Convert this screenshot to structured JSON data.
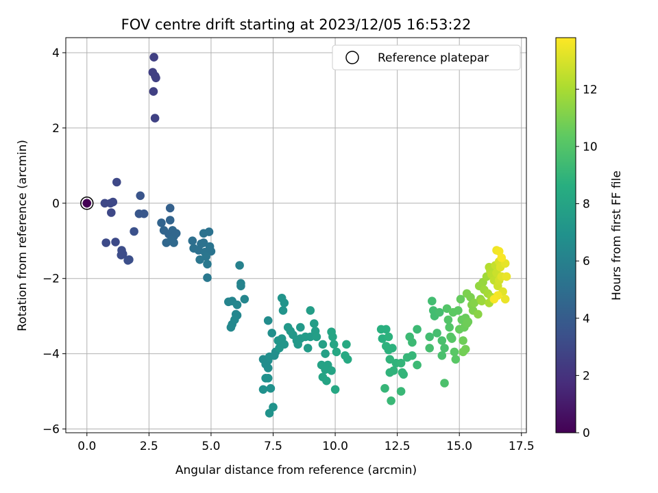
{
  "chart_data": {
    "type": "scatter",
    "title": "FOV centre drift starting at 2023/12/05 16:53:22",
    "xlabel": "Angular distance from reference (arcmin)",
    "ylabel": "Rotation from reference (arcmin)",
    "xlim": [
      -0.85,
      17.7
    ],
    "ylim": [
      -6.1,
      4.4
    ],
    "xticks": [
      0.0,
      2.5,
      5.0,
      7.5,
      10.0,
      12.5,
      15.0,
      17.5
    ],
    "xtick_labels": [
      "0.0",
      "2.5",
      "5.0",
      "7.5",
      "10.0",
      "12.5",
      "15.0",
      "17.5"
    ],
    "yticks": [
      -6,
      -4,
      -2,
      0,
      2,
      4
    ],
    "ytick_labels": [
      "−6",
      "−4",
      "−2",
      "0",
      "2",
      "4"
    ],
    "grid": true,
    "legend": {
      "placement": "top-right",
      "entries": [
        "Reference platepar"
      ]
    },
    "colorbar": {
      "label": "Hours from first FF file",
      "colormap": "viridis",
      "range": [
        0,
        13.8
      ],
      "ticks": [
        0,
        2,
        4,
        6,
        8,
        10,
        12
      ],
      "tick_labels": [
        "0",
        "2",
        "4",
        "6",
        "8",
        "10",
        "12"
      ]
    },
    "reference_point": {
      "x": 0.0,
      "y": 0.0,
      "marker": "open-circle"
    },
    "series": [
      {
        "columns": [
          "x",
          "y",
          "hours"
        ],
        "points": [
          [
            0.0,
            0.0,
            0.0
          ],
          [
            2.7,
            3.88,
            2.6
          ],
          [
            2.65,
            3.48,
            2.6
          ],
          [
            2.75,
            3.38,
            2.6
          ],
          [
            2.78,
            3.33,
            2.6
          ],
          [
            2.68,
            2.97,
            2.6
          ],
          [
            2.74,
            2.26,
            2.7
          ],
          [
            0.72,
            0.0,
            3.0
          ],
          [
            0.95,
            0.0,
            3.0
          ],
          [
            1.05,
            0.03,
            3.0
          ],
          [
            1.2,
            0.56,
            3.0
          ],
          [
            0.98,
            -0.25,
            3.0
          ],
          [
            0.77,
            -1.05,
            3.1
          ],
          [
            1.15,
            -1.03,
            3.1
          ],
          [
            1.4,
            -1.25,
            3.2
          ],
          [
            1.45,
            -1.35,
            3.2
          ],
          [
            1.38,
            -1.38,
            3.2
          ],
          [
            1.7,
            -1.5,
            3.3
          ],
          [
            1.65,
            -1.52,
            3.3
          ],
          [
            1.9,
            -0.75,
            3.4
          ],
          [
            2.15,
            0.2,
            3.6
          ],
          [
            2.1,
            -0.28,
            3.7
          ],
          [
            2.3,
            -0.28,
            3.7
          ],
          [
            3.35,
            -0.13,
            4.2
          ],
          [
            3.35,
            -0.45,
            4.4
          ],
          [
            3.0,
            -0.52,
            4.4
          ],
          [
            3.1,
            -0.72,
            4.5
          ],
          [
            3.3,
            -0.82,
            4.5
          ],
          [
            3.45,
            -0.72,
            4.6
          ],
          [
            3.5,
            -0.88,
            4.6
          ],
          [
            3.6,
            -0.8,
            4.6
          ],
          [
            3.2,
            -1.05,
            4.6
          ],
          [
            3.4,
            -0.98,
            4.7
          ],
          [
            3.5,
            -1.05,
            4.7
          ],
          [
            4.25,
            -1.0,
            5.0
          ],
          [
            4.3,
            -1.2,
            5.1
          ],
          [
            4.5,
            -1.25,
            5.1
          ],
          [
            4.6,
            -1.08,
            5.1
          ],
          [
            4.7,
            -0.8,
            5.2
          ],
          [
            4.92,
            -0.76,
            5.2
          ],
          [
            4.7,
            -1.05,
            5.2
          ],
          [
            4.95,
            -1.15,
            5.3
          ],
          [
            4.75,
            -1.3,
            5.3
          ],
          [
            5.0,
            -1.28,
            5.3
          ],
          [
            4.55,
            -1.5,
            5.4
          ],
          [
            4.8,
            -1.42,
            5.4
          ],
          [
            4.85,
            -1.62,
            5.5
          ],
          [
            4.85,
            -1.98,
            5.5
          ],
          [
            6.15,
            -1.65,
            6.0
          ],
          [
            6.2,
            -2.13,
            6.1
          ],
          [
            6.2,
            -2.2,
            6.1
          ],
          [
            5.7,
            -2.62,
            6.2
          ],
          [
            5.85,
            -2.6,
            6.2
          ],
          [
            6.05,
            -2.7,
            6.3
          ],
          [
            6.35,
            -2.55,
            6.3
          ],
          [
            6.0,
            -2.95,
            6.3
          ],
          [
            6.05,
            -2.98,
            6.3
          ],
          [
            5.85,
            -3.22,
            6.4
          ],
          [
            5.8,
            -3.3,
            6.4
          ],
          [
            5.95,
            -3.1,
            6.4
          ],
          [
            7.3,
            -3.12,
            6.6
          ],
          [
            7.1,
            -4.15,
            6.6
          ],
          [
            7.3,
            -4.18,
            6.7
          ],
          [
            7.3,
            -4.38,
            6.7
          ],
          [
            7.2,
            -4.28,
            6.7
          ],
          [
            7.45,
            -3.45,
            6.8
          ],
          [
            7.35,
            -4.08,
            6.8
          ],
          [
            7.6,
            -3.95,
            6.8
          ],
          [
            7.55,
            -4.05,
            6.8
          ],
          [
            7.2,
            -4.65,
            6.9
          ],
          [
            7.1,
            -4.95,
            6.9
          ],
          [
            7.3,
            -4.65,
            6.9
          ],
          [
            7.4,
            -4.92,
            6.9
          ],
          [
            7.5,
            -5.42,
            7.0
          ],
          [
            7.35,
            -5.58,
            7.0
          ],
          [
            7.85,
            -2.52,
            7.1
          ],
          [
            7.95,
            -2.65,
            7.1
          ],
          [
            7.9,
            -2.85,
            7.1
          ],
          [
            7.7,
            -3.65,
            7.2
          ],
          [
            7.85,
            -3.6,
            7.2
          ],
          [
            7.75,
            -3.85,
            7.2
          ],
          [
            7.95,
            -3.75,
            7.2
          ],
          [
            8.1,
            -3.3,
            7.3
          ],
          [
            8.2,
            -3.4,
            7.3
          ],
          [
            8.3,
            -3.5,
            7.3
          ],
          [
            8.45,
            -3.65,
            7.4
          ],
          [
            8.6,
            -3.6,
            7.4
          ],
          [
            8.5,
            -3.75,
            7.4
          ],
          [
            8.6,
            -3.3,
            7.4
          ],
          [
            8.8,
            -3.55,
            7.5
          ],
          [
            8.9,
            -3.85,
            7.5
          ],
          [
            9.0,
            -3.55,
            7.5
          ],
          [
            9.0,
            -2.85,
            7.6
          ],
          [
            9.15,
            -3.2,
            7.6
          ],
          [
            9.2,
            -3.4,
            7.6
          ],
          [
            9.25,
            -3.55,
            7.7
          ],
          [
            9.5,
            -3.75,
            7.8
          ],
          [
            9.6,
            -4.0,
            7.8
          ],
          [
            9.45,
            -4.3,
            7.9
          ],
          [
            9.7,
            -4.3,
            7.9
          ],
          [
            9.6,
            -4.42,
            7.9
          ],
          [
            9.5,
            -4.62,
            8.0
          ],
          [
            9.65,
            -4.72,
            8.0
          ],
          [
            9.85,
            -4.45,
            8.0
          ],
          [
            9.85,
            -3.42,
            8.1
          ],
          [
            9.9,
            -3.55,
            8.1
          ],
          [
            9.95,
            -3.75,
            8.1
          ],
          [
            10.05,
            -3.95,
            8.2
          ],
          [
            10.0,
            -4.95,
            8.2
          ],
          [
            10.4,
            -4.05,
            8.3
          ],
          [
            10.45,
            -3.75,
            8.3
          ],
          [
            10.5,
            -4.15,
            8.3
          ],
          [
            11.85,
            -3.35,
            8.7
          ],
          [
            12.05,
            -3.35,
            8.7
          ],
          [
            11.9,
            -3.6,
            8.7
          ],
          [
            12.15,
            -3.55,
            8.8
          ],
          [
            12.05,
            -3.8,
            8.8
          ],
          [
            12.3,
            -3.85,
            8.8
          ],
          [
            12.15,
            -3.9,
            8.8
          ],
          [
            12.2,
            -4.15,
            8.9
          ],
          [
            12.45,
            -4.25,
            8.9
          ],
          [
            12.35,
            -4.45,
            8.9
          ],
          [
            12.2,
            -4.5,
            8.9
          ],
          [
            12.65,
            -4.25,
            9.0
          ],
          [
            12.7,
            -4.5,
            9.0
          ],
          [
            12.75,
            -4.55,
            9.0
          ],
          [
            12.9,
            -4.1,
            9.1
          ],
          [
            13.1,
            -4.05,
            9.1
          ],
          [
            12.0,
            -4.92,
            9.1
          ],
          [
            12.25,
            -5.25,
            9.2
          ],
          [
            12.65,
            -5.0,
            9.2
          ],
          [
            13.0,
            -3.55,
            9.3
          ],
          [
            13.1,
            -3.7,
            9.3
          ],
          [
            13.3,
            -3.35,
            9.3
          ],
          [
            13.3,
            -4.3,
            9.3
          ],
          [
            13.8,
            -3.55,
            9.5
          ],
          [
            13.9,
            -2.6,
            9.5
          ],
          [
            13.95,
            -2.85,
            9.5
          ],
          [
            14.0,
            -3.0,
            9.5
          ],
          [
            14.2,
            -2.9,
            9.6
          ],
          [
            14.1,
            -3.45,
            9.6
          ],
          [
            13.8,
            -3.85,
            9.6
          ],
          [
            14.3,
            -3.65,
            9.7
          ],
          [
            14.4,
            -3.85,
            9.7
          ],
          [
            14.3,
            -4.05,
            9.7
          ],
          [
            14.4,
            -4.78,
            9.8
          ],
          [
            14.5,
            -2.8,
            10.0
          ],
          [
            14.55,
            -3.1,
            10.0
          ],
          [
            14.6,
            -3.3,
            10.0
          ],
          [
            14.65,
            -3.55,
            10.1
          ],
          [
            14.7,
            -3.6,
            10.1
          ],
          [
            14.8,
            -3.95,
            10.2
          ],
          [
            14.85,
            -4.15,
            10.2
          ],
          [
            14.75,
            -2.9,
            10.3
          ],
          [
            14.95,
            -2.85,
            10.3
          ],
          [
            15.05,
            -2.55,
            10.5
          ],
          [
            15.1,
            -3.1,
            10.5
          ],
          [
            15.0,
            -3.35,
            10.5
          ],
          [
            15.2,
            -3.3,
            10.6
          ],
          [
            15.25,
            -3.05,
            10.6
          ],
          [
            15.3,
            -3.2,
            10.7
          ],
          [
            15.35,
            -3.15,
            10.7
          ],
          [
            15.15,
            -3.65,
            10.7
          ],
          [
            15.15,
            -3.95,
            10.8
          ],
          [
            15.25,
            -3.88,
            10.8
          ],
          [
            15.3,
            -2.4,
            11.0
          ],
          [
            15.45,
            -2.5,
            11.0
          ],
          [
            15.5,
            -2.7,
            11.1
          ],
          [
            15.55,
            -2.85,
            11.1
          ],
          [
            15.6,
            -2.65,
            11.2
          ],
          [
            15.75,
            -2.95,
            11.3
          ],
          [
            15.85,
            -2.55,
            11.4
          ],
          [
            15.8,
            -2.2,
            11.5
          ],
          [
            15.95,
            -2.1,
            11.6
          ],
          [
            16.0,
            -2.3,
            11.7
          ],
          [
            15.9,
            -2.6,
            11.7
          ],
          [
            16.1,
            -1.95,
            11.8
          ],
          [
            16.15,
            -2.4,
            11.9
          ],
          [
            16.2,
            -2.65,
            12.0
          ],
          [
            16.3,
            -2.5,
            12.1
          ],
          [
            16.2,
            -1.7,
            12.2
          ],
          [
            16.25,
            -1.8,
            12.3
          ],
          [
            16.3,
            -1.9,
            12.4
          ],
          [
            16.4,
            -2.05,
            12.5
          ],
          [
            16.45,
            -1.65,
            12.6
          ],
          [
            16.5,
            -1.85,
            12.7
          ],
          [
            16.55,
            -2.2,
            12.8
          ],
          [
            16.6,
            -2.05,
            12.9
          ],
          [
            16.6,
            -1.55,
            13.0
          ],
          [
            16.65,
            -1.7,
            13.1
          ],
          [
            16.7,
            -1.95,
            13.2
          ],
          [
            16.75,
            -2.35,
            13.2
          ],
          [
            16.85,
            -1.6,
            13.3
          ],
          [
            16.9,
            -1.95,
            13.4
          ],
          [
            16.85,
            -2.55,
            13.4
          ],
          [
            16.5,
            -1.25,
            13.5
          ],
          [
            16.6,
            -1.28,
            13.6
          ],
          [
            16.55,
            -2.45,
            13.6
          ],
          [
            16.7,
            -1.45,
            13.7
          ],
          [
            16.4,
            -2.55,
            13.7
          ]
        ]
      }
    ]
  }
}
